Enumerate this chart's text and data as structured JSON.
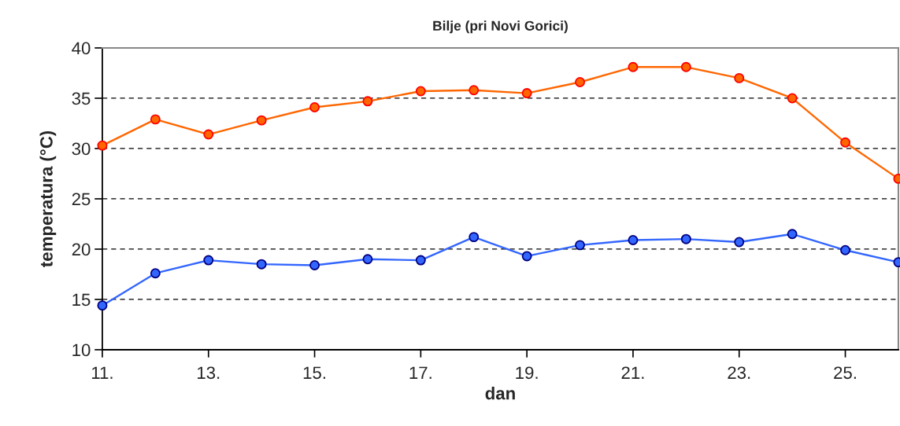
{
  "chart_data": {
    "type": "line",
    "title": "Bilje (pri Novi Gorici)",
    "xlabel": "dan",
    "ylabel": "temperatura (°C)",
    "x": [
      11,
      12,
      13,
      14,
      15,
      16,
      17,
      18,
      19,
      20,
      21,
      22,
      23,
      24,
      25,
      26
    ],
    "series": [
      {
        "color": "#ff6600",
        "values": [
          30.3,
          32.9,
          31.4,
          32.8,
          34.1,
          34.7,
          35.7,
          35.8,
          35.5,
          36.6,
          38.1,
          38.1,
          37.0,
          35.0,
          30.6,
          27.0
        ]
      },
      {
        "color": "#3366ff",
        "values": [
          14.4,
          17.6,
          18.9,
          18.5,
          18.4,
          19.0,
          18.9,
          21.2,
          19.3,
          20.4,
          20.9,
          21.0,
          20.7,
          21.5,
          19.9,
          18.7
        ]
      }
    ],
    "xlim": [
      11,
      26
    ],
    "xticks": [
      {
        "value": 11,
        "label": "11."
      },
      {
        "value": 13,
        "label": "13."
      },
      {
        "value": 15,
        "label": "15."
      },
      {
        "value": 17,
        "label": "17."
      },
      {
        "value": 19,
        "label": "19."
      },
      {
        "value": 21,
        "label": "21."
      },
      {
        "value": 23,
        "label": "23."
      },
      {
        "value": 25,
        "label": "25."
      }
    ],
    "ylim": [
      10,
      40
    ],
    "yticks": [
      10,
      15,
      20,
      25,
      30,
      35,
      40
    ],
    "grid": "y",
    "marker": "circle",
    "line_style": "solid"
  }
}
